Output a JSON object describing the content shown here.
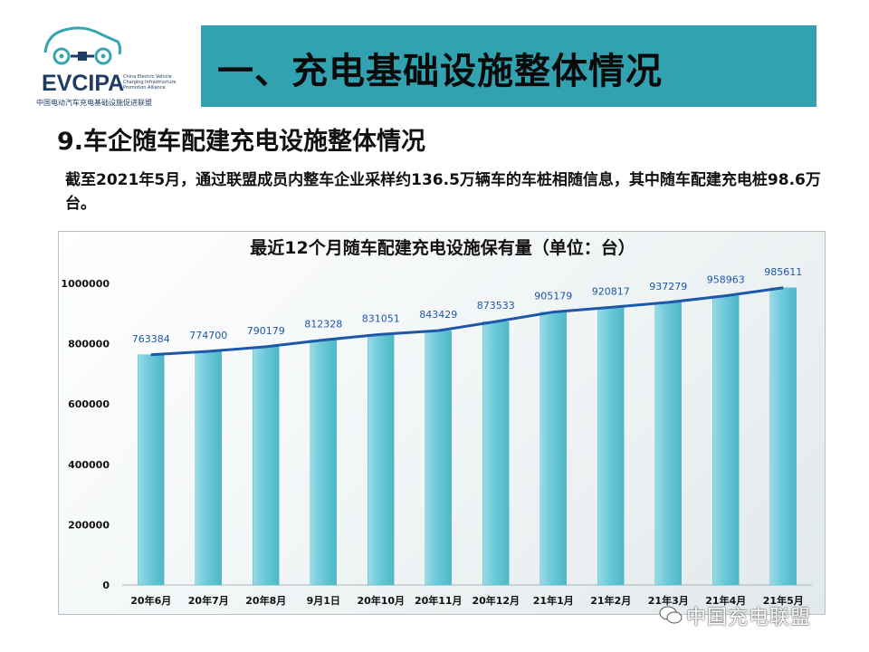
{
  "logo": {
    "brand": "EVCIPA",
    "subtitle_lines": [
      "China Electric Vehicle",
      "Charging Infrastructure",
      "Promotion Alliance"
    ],
    "chinese_name": "中国电动汽车充电基础设施促进联盟"
  },
  "header": {
    "title": "一、充电基础设施整体情况"
  },
  "section": {
    "heading": "9.车企随车配建充电设施整体情况",
    "intro": "截至2021年5月，通过联盟成员内整车企业采样约136.5万辆车的车桩相随信息，其中随车配建充电桩98.6万台。"
  },
  "watermark": {
    "text": "中国充电联盟"
  },
  "colors": {
    "banner": "#33a2b0",
    "bar": "#6cc9d9",
    "line": "#1c57a8"
  },
  "chart_data": {
    "type": "bar",
    "title": "最近12个月随车配建充电设施保有量（单位：台）",
    "categories": [
      "20年6月",
      "20年7月",
      "20年8月",
      "9月1日",
      "20年10月",
      "20年11月",
      "20年12月",
      "21年1月",
      "21年2月",
      "21年3月",
      "21年4月",
      "21年5月"
    ],
    "values": [
      763384,
      774700,
      790179,
      812328,
      831051,
      843429,
      873533,
      905179,
      920817,
      937279,
      958963,
      985611
    ],
    "overlay_line": true,
    "ylim": [
      0,
      1000000
    ],
    "yticks": [
      0,
      200000,
      400000,
      600000,
      800000,
      1000000
    ],
    "ytick_labels": [
      "0",
      "200000",
      "400000",
      "600000",
      "800000",
      "1000000"
    ],
    "xlabel": "",
    "ylabel": "",
    "grid": false,
    "legend": "none"
  }
}
